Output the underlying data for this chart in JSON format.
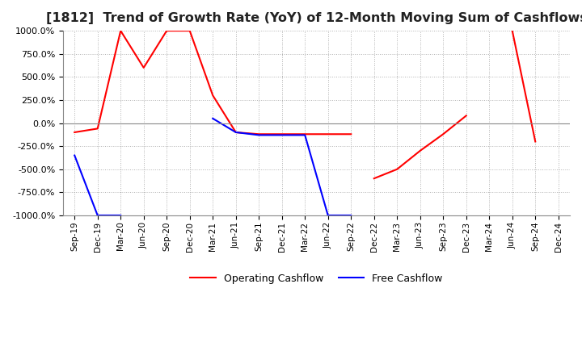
{
  "title": "[1812]  Trend of Growth Rate (YoY) of 12-Month Moving Sum of Cashflows",
  "title_fontsize": 11.5,
  "ylim": [
    -1000,
    1000
  ],
  "yticks": [
    -1000,
    -750,
    -500,
    -250,
    0,
    250,
    500,
    750,
    1000
  ],
  "background_color": "#ffffff",
  "grid_color": "#b0b0b0",
  "legend_labels": [
    "Operating Cashflow",
    "Free Cashflow"
  ],
  "legend_colors": [
    "#ff0000",
    "#0000ff"
  ],
  "x_labels": [
    "Sep-19",
    "Dec-19",
    "Mar-20",
    "Jun-20",
    "Sep-20",
    "Dec-20",
    "Mar-21",
    "Jun-21",
    "Sep-21",
    "Dec-21",
    "Mar-22",
    "Jun-22",
    "Sep-22",
    "Dec-22",
    "Mar-23",
    "Jun-23",
    "Sep-23",
    "Dec-23",
    "Mar-24",
    "Jun-24",
    "Sep-24",
    "Dec-24"
  ],
  "operating_cashflow_segments": [
    [
      [
        0,
        -100
      ],
      [
        1,
        -60
      ],
      [
        2,
        1000
      ],
      [
        3,
        600
      ],
      [
        4,
        1000
      ],
      [
        5,
        1000
      ],
      [
        6,
        300
      ],
      [
        7,
        -100
      ],
      [
        8,
        -120
      ],
      [
        9,
        -120
      ],
      [
        10,
        -120
      ],
      [
        11,
        -120
      ],
      [
        12,
        -120
      ]
    ],
    [
      [
        13,
        -600
      ],
      [
        14,
        -500
      ],
      [
        15,
        -300
      ],
      [
        16,
        -120
      ],
      [
        17,
        80
      ]
    ],
    [
      [
        19,
        1000
      ],
      [
        20,
        -200
      ]
    ]
  ],
  "free_cashflow_segments": [
    [
      [
        0,
        -350
      ],
      [
        1,
        -1000
      ],
      [
        2,
        -1000
      ]
    ],
    [
      [
        6,
        50
      ],
      [
        7,
        -100
      ],
      [
        8,
        -130
      ],
      [
        9,
        -130
      ],
      [
        10,
        -130
      ],
      [
        11,
        -1000
      ],
      [
        12,
        -1000
      ]
    ]
  ]
}
